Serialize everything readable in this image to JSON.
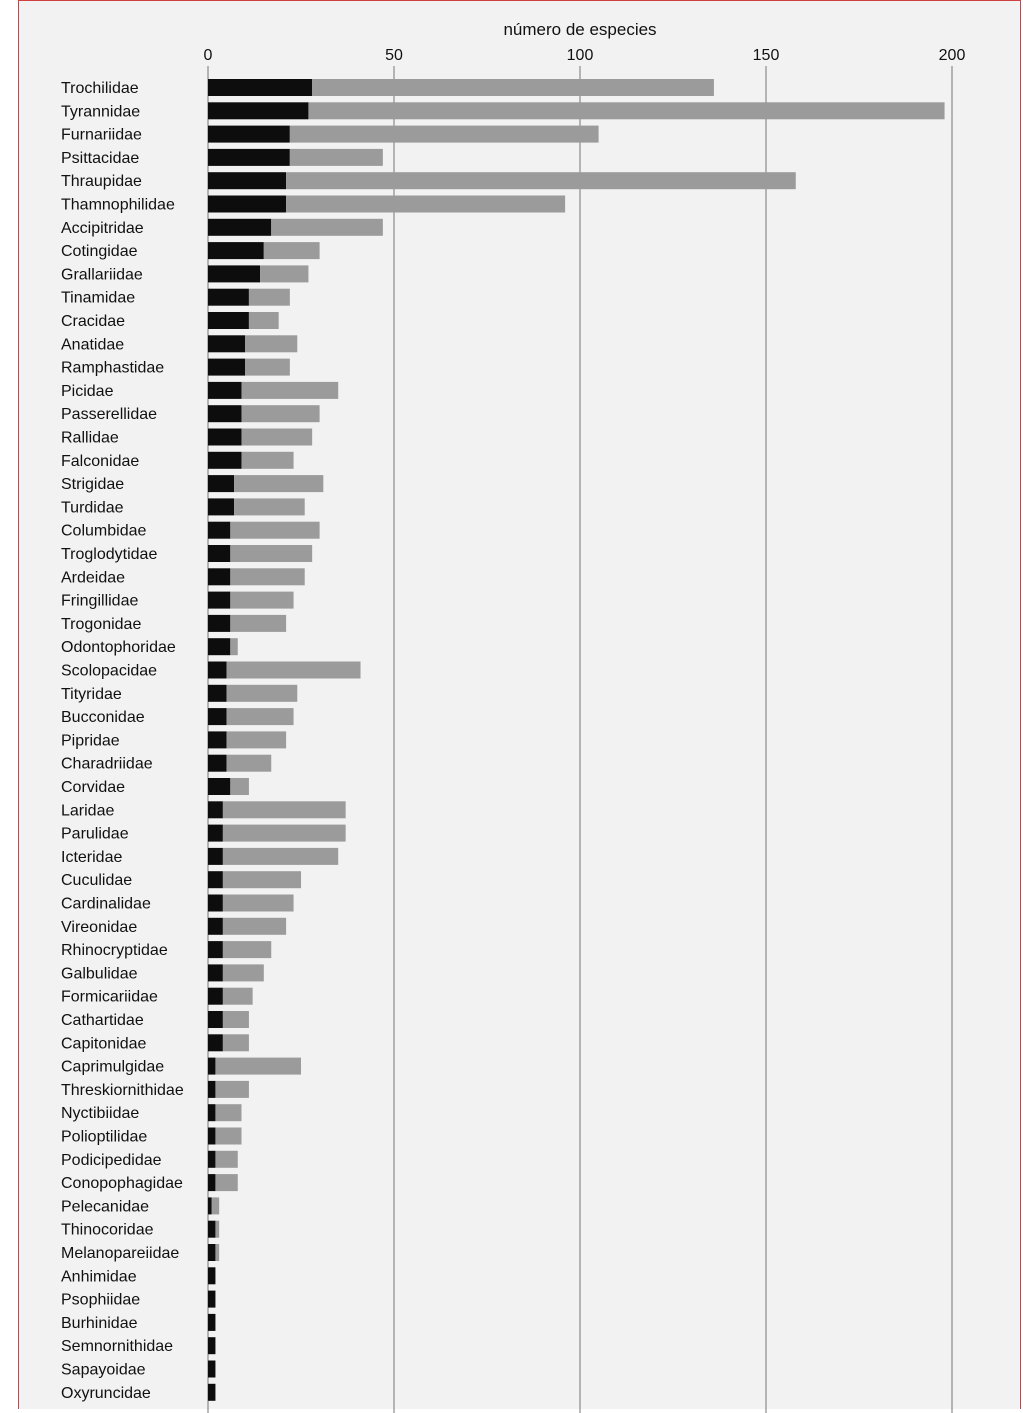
{
  "chart_data": {
    "type": "bar",
    "orientation": "horizontal",
    "stacked": true,
    "xlabel": "número de especies",
    "xlim": [
      0,
      200
    ],
    "xticks": [
      0,
      50,
      100,
      150,
      200
    ],
    "xaxis_position": "top",
    "grid": "vertical",
    "colors": {
      "series1": "#0d0d0d",
      "series2": "#9b9b9b",
      "grid": "#8c8c8c",
      "background": "#f2f2f2",
      "frame": "#d04040"
    },
    "categories": [
      "Trochilidae",
      "Tyrannidae",
      "Furnariidae",
      "Psittacidae",
      "Thraupidae",
      "Thamnophilidae",
      "Accipitridae",
      "Cotingidae",
      "Grallariidae",
      "Tinamidae",
      "Cracidae",
      "Anatidae",
      "Ramphastidae",
      "Picidae",
      "Passerellidae",
      "Rallidae",
      "Falconidae",
      "Strigidae",
      "Turdidae",
      "Columbidae",
      "Troglodytidae",
      "Ardeidae",
      "Fringillidae",
      "Trogonidae",
      "Odontophoridae",
      "Scolopacidae",
      "Tityridae",
      "Bucconidae",
      "Pipridae",
      "Charadriidae",
      "Corvidae",
      "Laridae",
      "Parulidae",
      "Icteridae",
      "Cuculidae",
      "Cardinalidae",
      "Vireonidae",
      "Rhinocryptidae",
      "Galbulidae",
      "Formicariidae",
      "Cathartidae",
      "Capitonidae",
      "Caprimulgidae",
      "Threskiornithidae",
      "Nyctibiidae",
      "Polioptilidae",
      "Podicipedidae",
      "Conopophagidae",
      "Pelecanidae",
      "Thinocoridae",
      "Melanopareiidae",
      "Anhimidae",
      "Psophiidae",
      "Burhinidae",
      "Semnornithidae",
      "Sapayoidae",
      "Oxyruncidae"
    ],
    "series": [
      {
        "values": [
          28,
          27,
          22,
          22,
          21,
          21,
          17,
          15,
          14,
          11,
          11,
          10,
          10,
          9,
          9,
          9,
          9,
          7,
          7,
          6,
          6,
          6,
          6,
          6,
          6,
          5,
          5,
          5,
          5,
          5,
          6,
          4,
          4,
          4,
          4,
          4,
          4,
          4,
          4,
          4,
          4,
          4,
          2,
          2,
          2,
          2,
          2,
          2,
          1,
          2,
          2,
          2,
          2,
          2,
          2,
          2,
          2
        ]
      },
      {
        "values": [
          108,
          171,
          83,
          25,
          137,
          75,
          30,
          15,
          13,
          11,
          8,
          14,
          12,
          26,
          21,
          19,
          14,
          24,
          19,
          24,
          22,
          20,
          17,
          15,
          2,
          36,
          19,
          18,
          16,
          12,
          5,
          33,
          33,
          31,
          21,
          19,
          17,
          13,
          11,
          8,
          7,
          7,
          23,
          9,
          7,
          7,
          6,
          6,
          2,
          1,
          1,
          0,
          0,
          0,
          0,
          0,
          0
        ]
      }
    ]
  }
}
